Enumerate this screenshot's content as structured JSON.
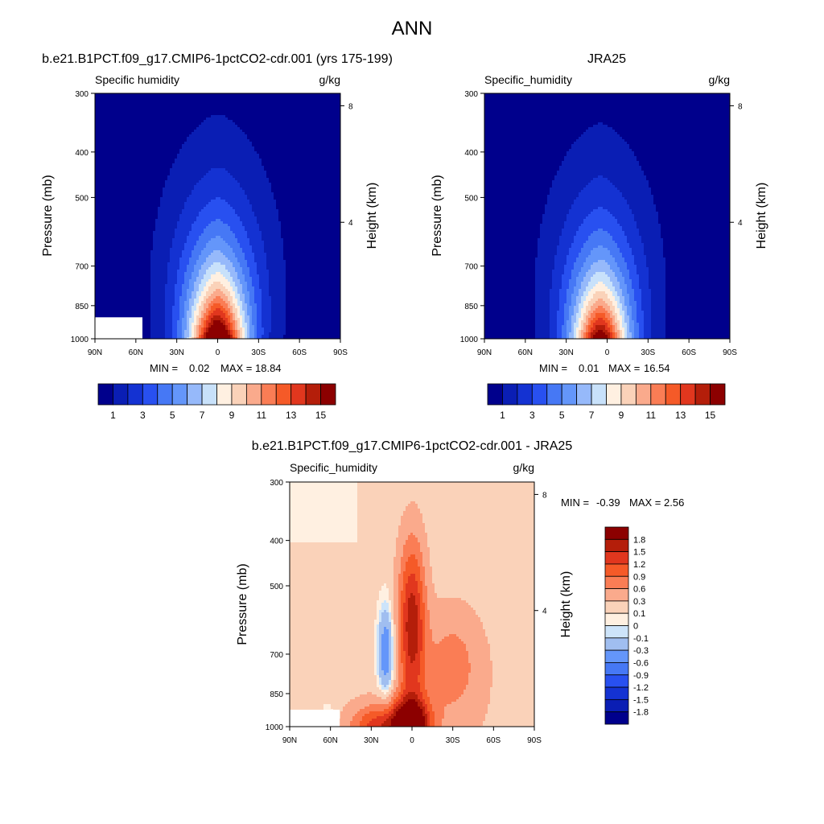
{
  "page": {
    "title": "ANN"
  },
  "panels": [
    {
      "id": "model",
      "title": "b.e21.B1PCT.f09_g17.CMIP6-1pctCO2-cdr.001 (yrs 175-199)",
      "variable": "Specific humidity",
      "units": "g/kg",
      "ylabel": "Pressure (mb)",
      "y2label": "Height (km)",
      "x_ticks": [
        "90N",
        "60N",
        "30N",
        "0",
        "30S",
        "60S",
        "90S"
      ],
      "y_ticks": [
        "300",
        "400",
        "500",
        "700",
        "850",
        "1000"
      ],
      "y2_ticks": [
        "8",
        "4"
      ],
      "min_label": "MIN =",
      "min_value": "0.02",
      "max_label": "MAX =",
      "max_value": "18.84",
      "peak": 18.84,
      "peak_lat": 0,
      "missing_box": {
        "lat_from": 54,
        "lat_to": 90,
        "p_from": 900,
        "p_to": 1000
      }
    },
    {
      "id": "obs",
      "title": "JRA25",
      "variable": "Specific_humidity",
      "units": "g/kg",
      "ylabel": "Pressure (mb)",
      "y2label": "Height (km)",
      "x_ticks": [
        "90N",
        "60N",
        "30N",
        "0",
        "30S",
        "60S",
        "90S"
      ],
      "y_ticks": [
        "300",
        "400",
        "500",
        "700",
        "850",
        "1000"
      ],
      "y2_ticks": [
        "8",
        "4"
      ],
      "min_label": "MIN =",
      "min_value": "0.01",
      "max_label": "MAX =",
      "max_value": "16.54",
      "peak": 16.54,
      "peak_lat": 5
    },
    {
      "id": "diff",
      "title": "b.e21.B1PCT.f09_g17.CMIP6-1pctCO2-cdr.001 - JRA25",
      "variable": "Specific_humidity",
      "units": "g/kg",
      "ylabel": "Pressure (mb)",
      "y2label": "Height (km)",
      "x_ticks": [
        "90N",
        "60N",
        "30N",
        "0",
        "30S",
        "60S",
        "90S"
      ],
      "y_ticks": [
        "300",
        "400",
        "500",
        "700",
        "850",
        "1000"
      ],
      "y2_ticks": [
        "8",
        "4"
      ],
      "min_label": "MIN =",
      "min_value": "-0.39",
      "max_label": "MAX =",
      "max_value": "2.56",
      "missing_box": {
        "lat_from": 52,
        "lat_to": 90,
        "p_from": 920,
        "p_to": 1000
      }
    }
  ],
  "colorbar_abs": {
    "colors": [
      "#00008c",
      "#0a1eb4",
      "#1432d2",
      "#2850f0",
      "#4678f5",
      "#6496fa",
      "#96b9fa",
      "#c8e1fa",
      "#fff0e1",
      "#fad2b9",
      "#faaa8c",
      "#fa7d55",
      "#f55a28",
      "#e1371e",
      "#b41e0a",
      "#8c0000"
    ],
    "labels": [
      "1",
      "3",
      "5",
      "7",
      "9",
      "11",
      "13",
      "15"
    ]
  },
  "colorbar_diff": {
    "colors": [
      "#00008c",
      "#0a1eb4",
      "#1432d2",
      "#2850f0",
      "#4678f5",
      "#6496fa",
      "#a0bef0",
      "#cde4fa",
      "#fff0e1",
      "#fad2b9",
      "#faaa8c",
      "#fa7d55",
      "#f55a28",
      "#e1371e",
      "#b41e0a",
      "#8c0000"
    ],
    "labels": [
      "1.8",
      "1.5",
      "1.2",
      "0.9",
      "0.6",
      "0.3",
      "0.1",
      "0",
      "-0.1",
      "-0.3",
      "-0.6",
      "-0.9",
      "-1.2",
      "-1.5",
      "-1.8"
    ]
  },
  "chart_data": [
    {
      "type": "heatmap",
      "title": "b.e21.B1PCT.f09_g17.CMIP6-1pctCO2-cdr.001 (yrs 175-199)",
      "variable": "Specific humidity",
      "units": "g/kg",
      "xlabel": "",
      "ylabel": "Pressure (mb)",
      "y2label": "Height (km)",
      "x": [
        "90N",
        "60N",
        "30N",
        "0",
        "30S",
        "60S",
        "90S"
      ],
      "y_pressure_log": true,
      "ylim": [
        1000,
        300
      ],
      "min": 0.02,
      "max": 18.84,
      "contour_levels": [
        0,
        1,
        2,
        3,
        4,
        5,
        6,
        7,
        8,
        9,
        10,
        11,
        12,
        13,
        14,
        15,
        16
      ]
    },
    {
      "type": "heatmap",
      "title": "JRA25",
      "variable": "Specific_humidity",
      "units": "g/kg",
      "xlabel": "",
      "ylabel": "Pressure (mb)",
      "y2label": "Height (km)",
      "x": [
        "90N",
        "60N",
        "30N",
        "0",
        "30S",
        "60S",
        "90S"
      ],
      "y_pressure_log": true,
      "ylim": [
        1000,
        300
      ],
      "min": 0.01,
      "max": 16.54,
      "contour_levels": [
        0,
        1,
        2,
        3,
        4,
        5,
        6,
        7,
        8,
        9,
        10,
        11,
        12,
        13,
        14,
        15,
        16
      ]
    },
    {
      "type": "heatmap",
      "title": "b.e21.B1PCT.f09_g17.CMIP6-1pctCO2-cdr.001 - JRA25",
      "variable": "Specific_humidity",
      "units": "g/kg",
      "xlabel": "",
      "ylabel": "Pressure (mb)",
      "y2label": "Height (km)",
      "x": [
        "90N",
        "60N",
        "30N",
        "0",
        "30S",
        "60S",
        "90S"
      ],
      "y_pressure_log": true,
      "ylim": [
        1000,
        300
      ],
      "min": -0.39,
      "max": 2.56,
      "contour_levels": [
        -1.8,
        -1.5,
        -1.2,
        -0.9,
        -0.6,
        -0.3,
        -0.1,
        0,
        0.1,
        0.3,
        0.6,
        0.9,
        1.2,
        1.5,
        1.8
      ]
    }
  ]
}
